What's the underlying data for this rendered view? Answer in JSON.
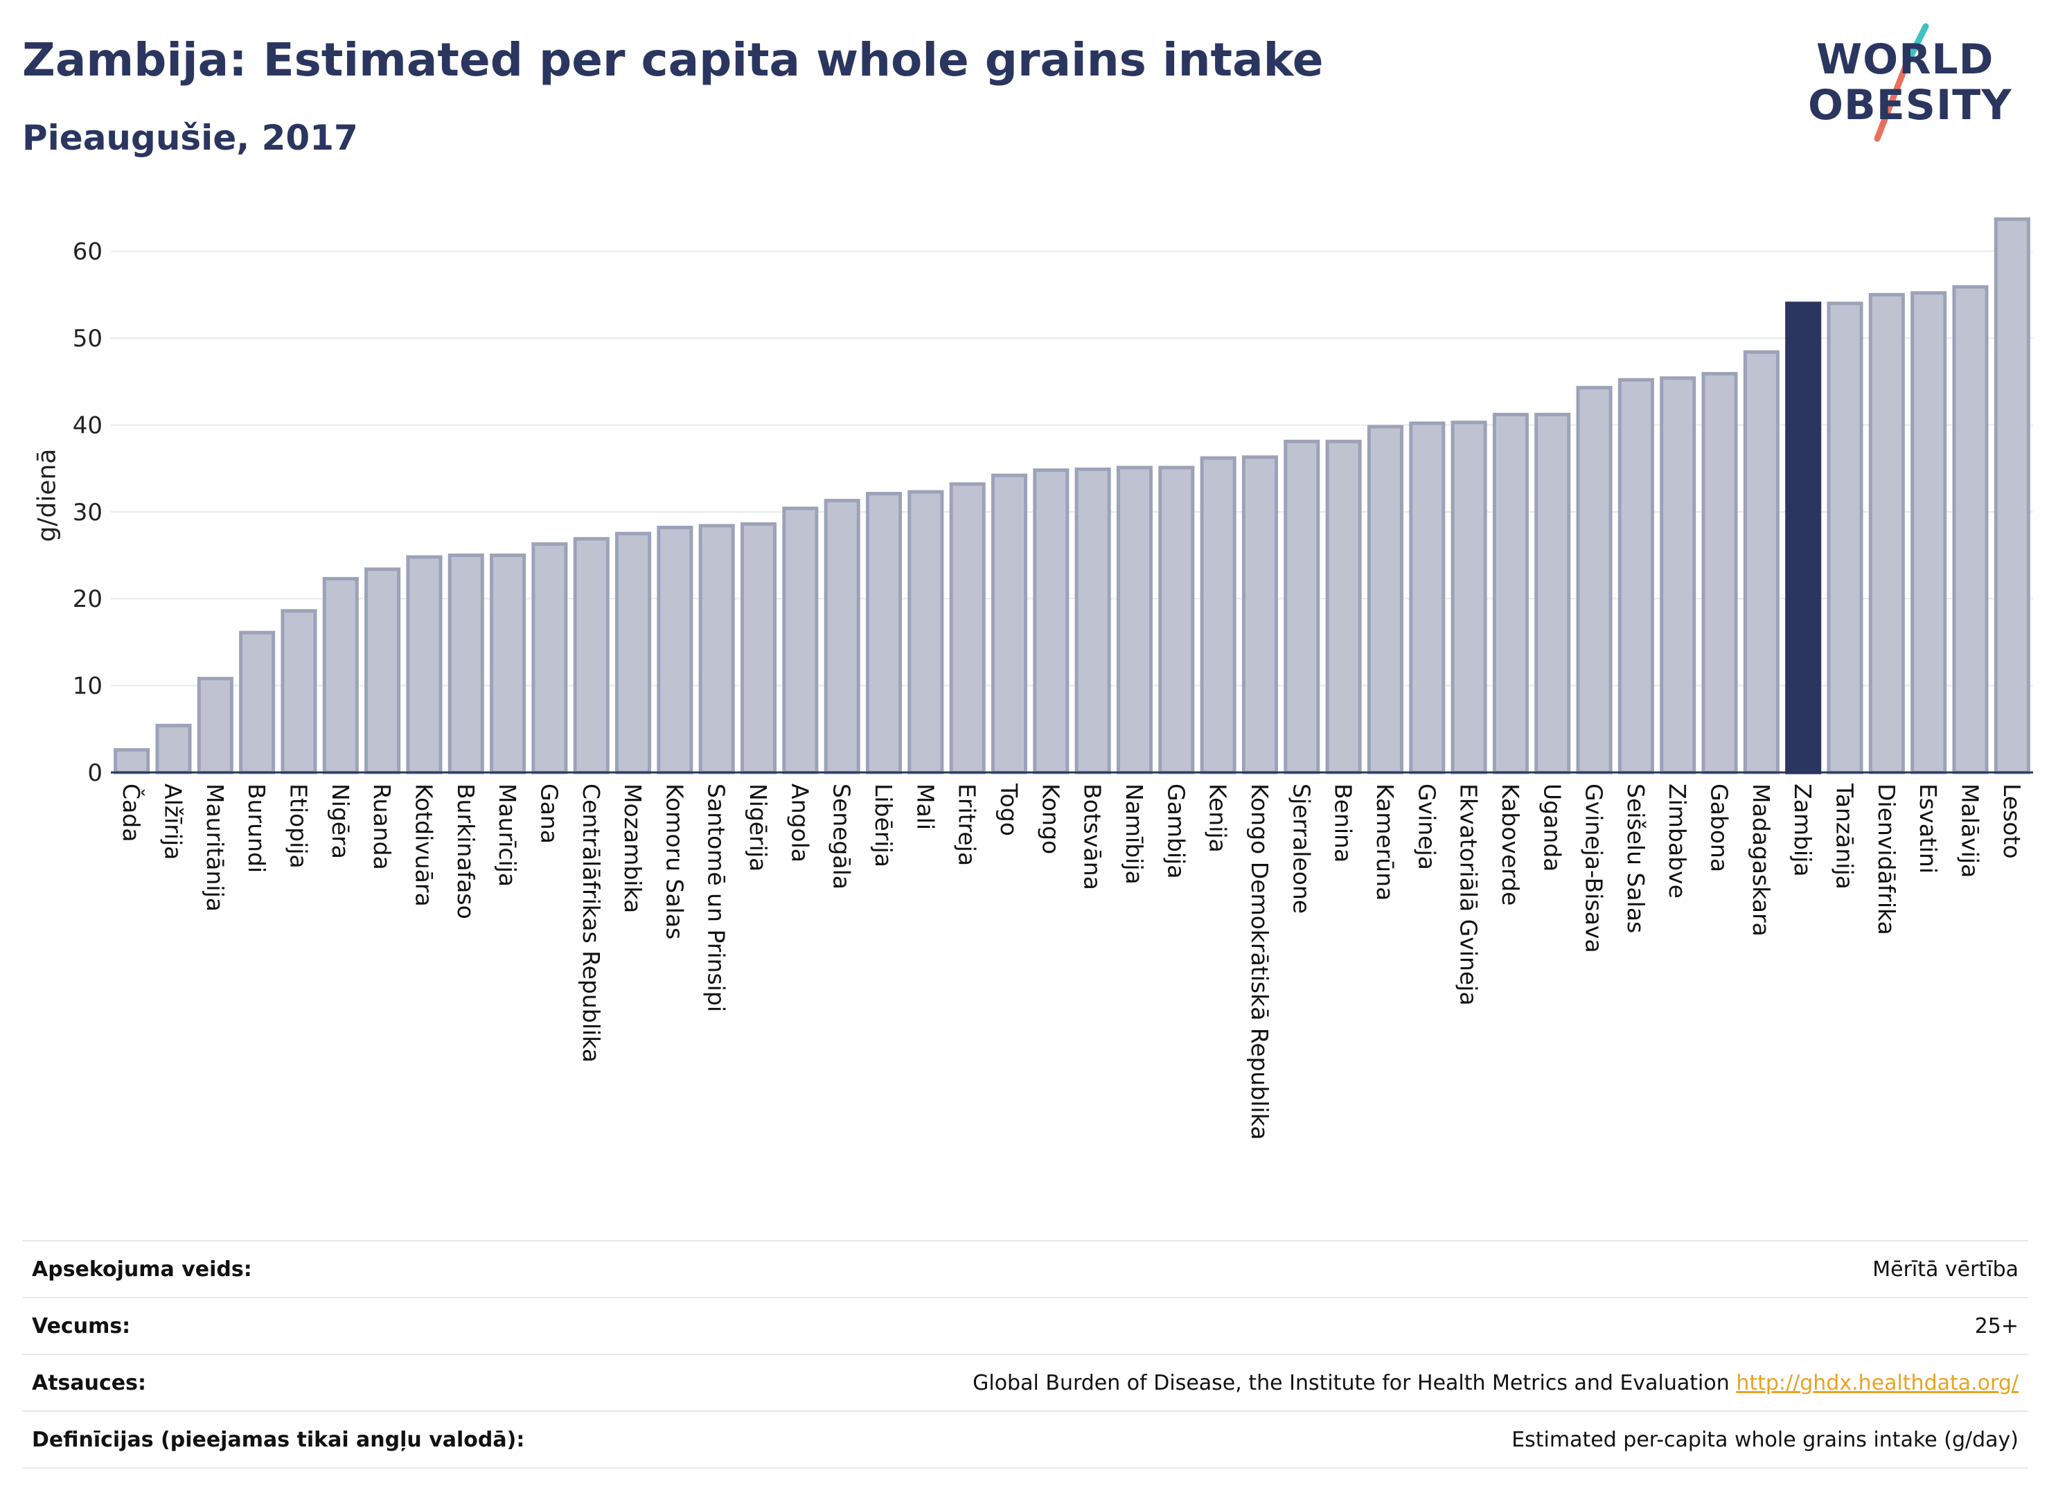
{
  "header": {
    "title": "Zambija: Estimated per capita whole grains intake",
    "subtitle": "Pieaugušie, 2017"
  },
  "logo": {
    "line1": "WORLD",
    "line2": "OBESITY",
    "accent_teal": "#3fc1c0",
    "accent_coral": "#e8705d"
  },
  "colors": {
    "bar_fill": "#bfc3d1",
    "bar_stroke": "#9ca2b8",
    "highlight": "#2a365f",
    "grid": "#e8e9ee",
    "text": "#2a365f"
  },
  "chart_data": {
    "type": "bar",
    "ylabel": "g/dienā",
    "ylim": [
      0,
      65
    ],
    "yticks": [
      0,
      10,
      20,
      30,
      40,
      50,
      60
    ],
    "highlight": "Zambija",
    "grid": true,
    "categories": [
      "Čada",
      "Alžīrija",
      "Mauritānija",
      "Burundi",
      "Etiopija",
      "Nigēra",
      "Ruanda",
      "Kotdivuāra",
      "Burkinafaso",
      "Maurīcija",
      "Gana",
      "Centrālāfrikas Republika",
      "Mozambika",
      "Komoru Salas",
      "Santomē un Prinsipi",
      "Nigērija",
      "Angola",
      "Senegāla",
      "Libērija",
      "Mali",
      "Eritreja",
      "Togo",
      "Kongo",
      "Botsvāna",
      "Namībija",
      "Gambija",
      "Kenija",
      "Kongo Demokrātiskā Republika",
      "Sjerraleone",
      "Benina",
      "Kamerūna",
      "Gvineja",
      "Ekvatoriālā Gvineja",
      "Kaboverde",
      "Uganda",
      "Gvineja-Bisava",
      "Seišelu Salas",
      "Zimbabve",
      "Gabona",
      "Madagaskara",
      "Zambija",
      "Tanzānija",
      "Dienvidāfrika",
      "Esvatini",
      "Malāvija",
      "Lesoto"
    ],
    "values": [
      2.6,
      5.4,
      10.8,
      16.1,
      18.6,
      22.3,
      23.4,
      24.8,
      25.0,
      25.0,
      26.3,
      26.9,
      27.5,
      28.2,
      28.4,
      28.6,
      30.4,
      31.3,
      32.1,
      32.3,
      33.2,
      34.2,
      34.8,
      34.9,
      35.1,
      35.1,
      36.2,
      36.3,
      38.1,
      38.1,
      39.8,
      40.2,
      40.3,
      41.2,
      41.2,
      44.3,
      45.2,
      45.4,
      45.9,
      48.4,
      54.0,
      54.0,
      55.0,
      55.2,
      55.9,
      63.7
    ]
  },
  "meta": {
    "rows": [
      {
        "label": "Apsekojuma veids:",
        "value": "Mērītā vērtība"
      },
      {
        "label": "Vecums:",
        "value": "25+"
      },
      {
        "label": "Atsauces:",
        "value": "Global Burden of Disease, the Institute for Health Metrics and Evaluation",
        "link": "http://ghdx.healthdata.org/"
      },
      {
        "label": "Definīcijas (pieejamas tikai angļu valodā):",
        "value": "Estimated per-capita whole grains intake (g/day)"
      }
    ]
  }
}
